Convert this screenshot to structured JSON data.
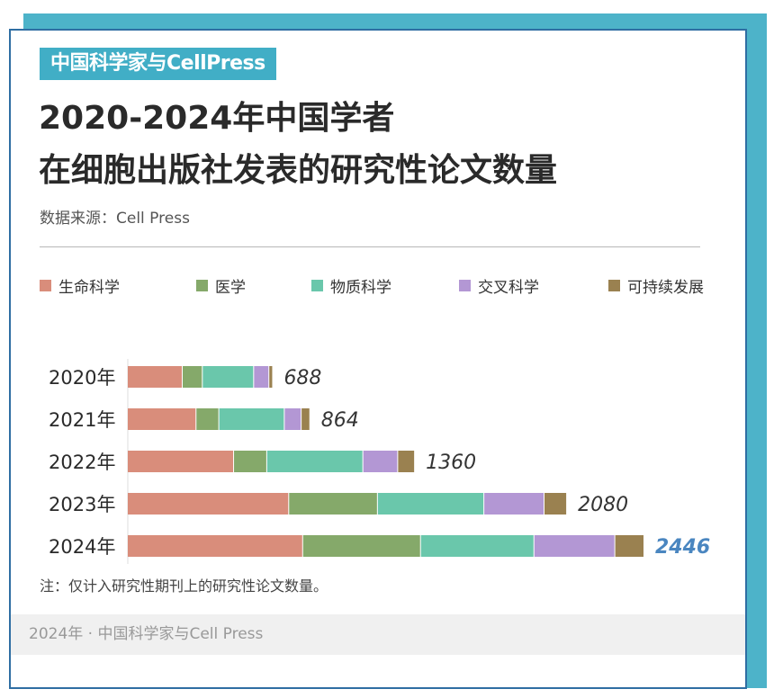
{
  "brand": "中国科学家与CellPress",
  "title_line1": "2020-2024年中国学者",
  "title_line2": "在细胞出版社发表的研究性论文数量",
  "source": "数据来源：Cell Press",
  "note": "注：仅计入研究性期刊上的研究性论文数量。",
  "footer": "2024年 · 中国科学家与Cell Press",
  "colors": {
    "frame": "#4db3c9",
    "border": "#2f6ea3",
    "highlight_total": "#4a86c0"
  },
  "chart_data": {
    "type": "bar",
    "orientation": "horizontal",
    "stacked": true,
    "categories": [
      "2020年",
      "2021年",
      "2022年",
      "2023年",
      "2024年"
    ],
    "series": [
      {
        "name": "生命科学",
        "color": "#d98d7b",
        "values": [
          260,
          325,
          503,
          764,
          830
        ]
      },
      {
        "name": "医学",
        "color": "#85a96a",
        "values": [
          95,
          108,
          157,
          420,
          558
        ]
      },
      {
        "name": "物质科学",
        "color": "#6ac7ab",
        "values": [
          243,
          310,
          455,
          504,
          537
        ]
      },
      {
        "name": "交叉科学",
        "color": "#b397d4",
        "values": [
          72,
          80,
          165,
          285,
          383
        ]
      },
      {
        "name": "可持续发展",
        "color": "#9a8150",
        "values": [
          18,
          41,
          80,
          107,
          138
        ]
      }
    ],
    "totals": [
      688,
      864,
      1360,
      2080,
      2446
    ],
    "xlim": [
      0,
      2446
    ],
    "title": "2020-2024年中国学者在细胞出版社发表的研究性论文数量",
    "legend_position": "top"
  }
}
